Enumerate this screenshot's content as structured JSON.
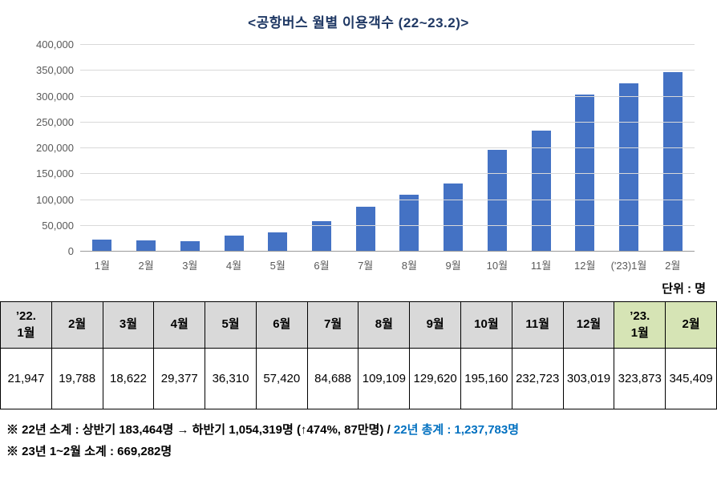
{
  "title": "<공항버스 월별 이용객수 (22~23.2)>",
  "unit_label": "단위 : 명",
  "chart_data": {
    "type": "bar",
    "title": "<공항버스 월별 이용객수 (22~23.2)>",
    "categories": [
      "1월",
      "2월",
      "3월",
      "4월",
      "5월",
      "6월",
      "7월",
      "8월",
      "9월",
      "10월",
      "11월",
      "12월",
      "('23)1월",
      "2월"
    ],
    "values": [
      21947,
      19788,
      18622,
      29377,
      36310,
      57420,
      84688,
      109109,
      129620,
      195160,
      232723,
      303019,
      323873,
      345409
    ],
    "xlabel": "",
    "ylabel": "",
    "ylim": [
      0,
      400000
    ],
    "ytick_interval": 50000,
    "grid": true,
    "legend": "none",
    "bar_color": "#4472C4"
  },
  "table": {
    "headers": [
      "’22.\n1월",
      "2월",
      "3월",
      "4월",
      "5월",
      "6월",
      "7월",
      "8월",
      "9월",
      "10월",
      "11월",
      "12월",
      "’23.\n1월",
      "2월"
    ],
    "values": [
      "21,947",
      "19,788",
      "18,622",
      "29,377",
      "36,310",
      "57,420",
      "84,688",
      "109,109",
      "129,620",
      "195,160",
      "232,723",
      "303,019",
      "323,873",
      "345,409"
    ],
    "highlight_columns": [
      12,
      13
    ],
    "header_bg": "#D9D9D9",
    "highlight_bg": "#D6E4B5"
  },
  "footnotes": {
    "line1_prefix": "※ 22년 소계 : 상반기 183,464명 → 하반기 1,054,319명 (↑474%, 87만명) / ",
    "line1_highlight": "22년 총계 : 1,237,783명",
    "line2": "※ 23년 1~2월 소계 : 669,282명",
    "highlight_color": "#0070C0"
  }
}
